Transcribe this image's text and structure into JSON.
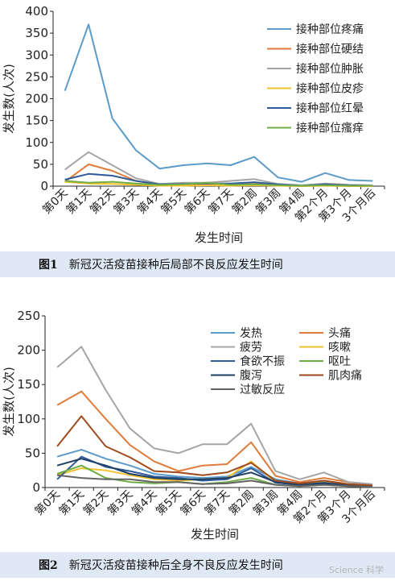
{
  "chart_data": [
    {
      "type": "line",
      "ylabel": "发生数(人次)",
      "xlabel": "发生时间",
      "ylim": [
        0,
        400
      ],
      "yticks": [
        0,
        50,
        100,
        150,
        200,
        250,
        300,
        350,
        400
      ],
      "categories": [
        "第0天",
        "第1天",
        "第2天",
        "第3天",
        "第4天",
        "第5天",
        "第6天",
        "第7天",
        "第2周",
        "第3周",
        "第4周",
        "第2个月",
        "第3个月",
        "3个月后"
      ],
      "legend": "top-right",
      "series": [
        {
          "name": "接种部位疼痛",
          "color": "#5b9bc8",
          "values": [
            218,
            370,
            155,
            82,
            40,
            48,
            52,
            48,
            67,
            20,
            10,
            30,
            14,
            12
          ]
        },
        {
          "name": "接种部位硬结",
          "color": "#e07b39",
          "values": [
            10,
            50,
            35,
            12,
            3,
            3,
            3,
            3,
            5,
            3,
            1,
            3,
            2,
            1
          ]
        },
        {
          "name": "接种部位肿胀",
          "color": "#a5a5a5",
          "values": [
            38,
            78,
            48,
            18,
            5,
            8,
            8,
            12,
            16,
            5,
            2,
            6,
            3,
            2
          ]
        },
        {
          "name": "接种部位皮疹",
          "color": "#f2c12e",
          "values": [
            10,
            6,
            5,
            3,
            1,
            1,
            2,
            1,
            2,
            1,
            0,
            1,
            0,
            0
          ]
        },
        {
          "name": "接种部位红晕",
          "color": "#2f5b9a",
          "values": [
            15,
            28,
            24,
            12,
            4,
            5,
            6,
            6,
            9,
            4,
            1,
            4,
            2,
            1
          ]
        },
        {
          "name": "接种部位瘙痒",
          "color": "#70ad47",
          "values": [
            12,
            8,
            10,
            6,
            3,
            4,
            8,
            3,
            4,
            2,
            1,
            2,
            1,
            1
          ]
        }
      ]
    },
    {
      "type": "line",
      "ylabel": "发生数(人次)",
      "xlabel": "发生时间",
      "ylim": [
        0,
        250
      ],
      "yticks": [
        0,
        50,
        100,
        150,
        200,
        250
      ],
      "categories": [
        "第0天",
        "第1天",
        "第2天",
        "第3天",
        "第4天",
        "第5天",
        "第6天",
        "第7天",
        "第2周",
        "第3周",
        "第4周",
        "第2个月",
        "第3个月",
        "3个月后"
      ],
      "legend": "top-right",
      "series": [
        {
          "name": "发热",
          "color": "#5b9bc8",
          "values": [
            45,
            55,
            42,
            32,
            20,
            16,
            14,
            16,
            30,
            12,
            6,
            10,
            5,
            3
          ]
        },
        {
          "name": "头痛",
          "color": "#e07b39",
          "values": [
            120,
            140,
            100,
            62,
            38,
            24,
            32,
            34,
            66,
            17,
            8,
            14,
            8,
            4
          ]
        },
        {
          "name": "疲劳",
          "color": "#a5a5a5",
          "values": [
            175,
            205,
            142,
            86,
            57,
            50,
            63,
            63,
            93,
            24,
            12,
            22,
            8,
            5
          ]
        },
        {
          "name": "咳嗽",
          "color": "#f2c12e",
          "values": [
            18,
            28,
            25,
            18,
            12,
            10,
            12,
            14,
            38,
            8,
            4,
            9,
            4,
            2
          ]
        },
        {
          "name": "食欲不振",
          "color": "#2f5b9a",
          "values": [
            12,
            45,
            30,
            24,
            16,
            14,
            10,
            12,
            28,
            7,
            4,
            7,
            3,
            2
          ]
        },
        {
          "name": "呕吐",
          "color": "#70ad47",
          "values": [
            20,
            32,
            14,
            8,
            6,
            8,
            5,
            8,
            14,
            4,
            2,
            4,
            2,
            1
          ]
        },
        {
          "name": "腹泻",
          "color": "#1f3f66",
          "values": [
            32,
            42,
            32,
            20,
            14,
            12,
            12,
            14,
            22,
            8,
            4,
            6,
            4,
            2
          ]
        },
        {
          "name": "肌肉痛",
          "color": "#9e4a1c",
          "values": [
            60,
            104,
            60,
            44,
            24,
            22,
            18,
            22,
            36,
            10,
            6,
            10,
            5,
            3
          ]
        },
        {
          "name": "过敏反应",
          "color": "#636363",
          "values": [
            18,
            14,
            12,
            12,
            8,
            8,
            5,
            6,
            10,
            4,
            2,
            4,
            2,
            1
          ]
        }
      ]
    }
  ],
  "captions": [
    {
      "fig": "图1",
      "text": "新冠灭活疫苗接种后局部不良反应发生时间"
    },
    {
      "fig": "图2",
      "text": "新冠灭活疫苗接种后全身不良反应发生时间"
    }
  ],
  "watermark": "Science 科学"
}
